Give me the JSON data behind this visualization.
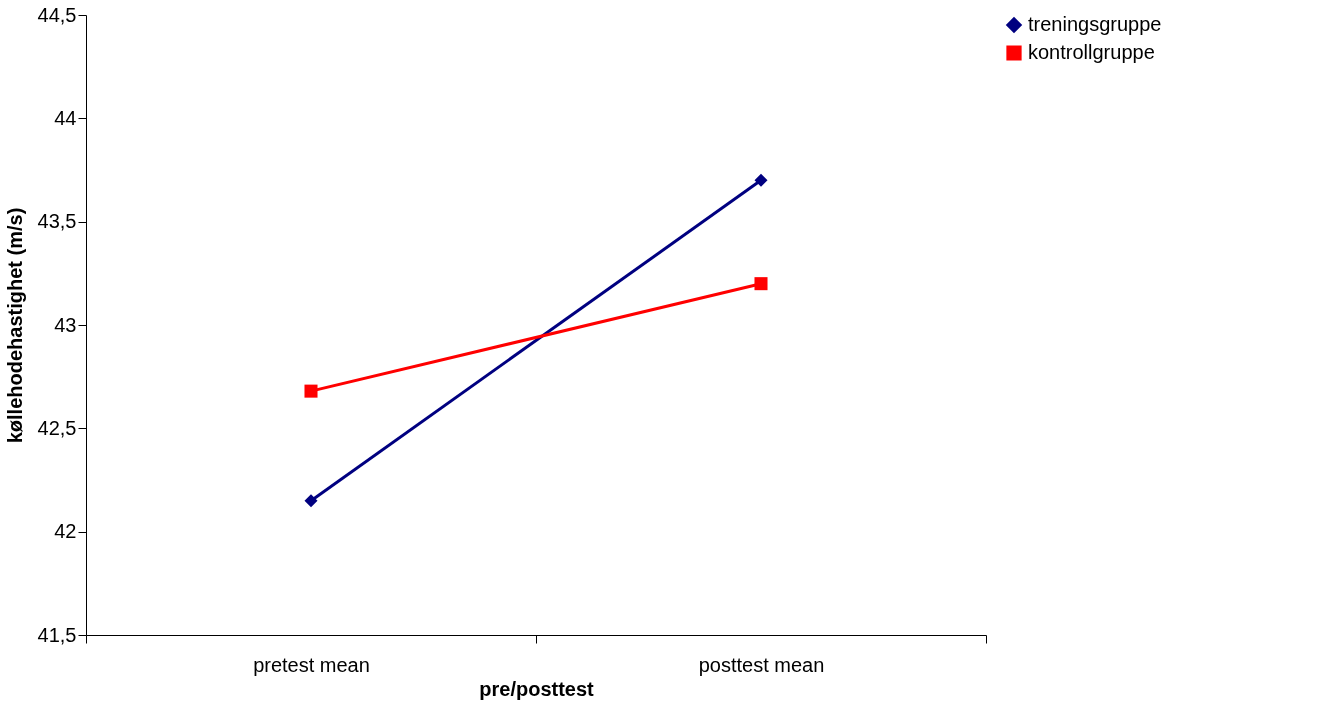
{
  "chart_data": {
    "type": "line",
    "xlabel": "pre/posttest",
    "ylabel": "køllehodehastighet (m/s)",
    "categories": [
      "pretest mean",
      "posttest mean"
    ],
    "series": [
      {
        "name": "treningsgruppe",
        "color": "#000080",
        "marker": "diamond",
        "values": [
          42.15,
          43.7
        ]
      },
      {
        "name": "kontrollgruppe",
        "color": "#ff0000",
        "marker": "square",
        "values": [
          42.68,
          43.2
        ]
      }
    ],
    "ylim": [
      41.5,
      44.5
    ],
    "yticks": [
      {
        "value": 41.5,
        "label": "41,5"
      },
      42,
      {
        "value": 42.5,
        "label": "42,5"
      },
      43,
      {
        "value": 43.5,
        "label": "43,5"
      },
      44,
      {
        "value": 44.5,
        "label": "44,5"
      }
    ],
    "grid": false,
    "legend": "right",
    "line_style": "solid"
  }
}
